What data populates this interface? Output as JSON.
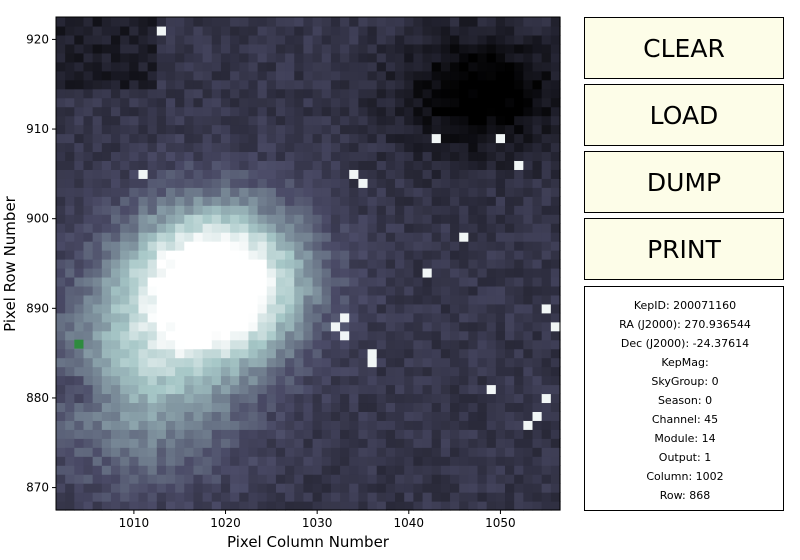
{
  "chart_data": {
    "type": "heatmap",
    "xlabel": "Pixel Column Number",
    "ylabel": "Pixel Row Number",
    "xlim": [
      1001.5,
      1056.5
    ],
    "ylim": [
      867.5,
      922.5
    ],
    "xticks": [
      "1010",
      "1020",
      "1030",
      "1040",
      "1050"
    ],
    "yticks": [
      "870",
      "880",
      "890",
      "900",
      "910",
      "920"
    ],
    "colormap": "bone",
    "selected_pixel": {
      "column": 1004,
      "row": 886,
      "color": "#2e8b3e"
    }
  },
  "buttons": {
    "clear": "CLEAR",
    "load": "LOAD",
    "dump": "DUMP",
    "print": "PRINT"
  },
  "info": {
    "kepid": "KepID: 200071160",
    "ra": "RA (J2000): 270.936544",
    "dec": "Dec (J2000): -24.37614",
    "kepmag": "KepMag:",
    "skygroup": "SkyGroup: 0",
    "season": "Season: 0",
    "channel": "Channel: 45",
    "module": "Module: 14",
    "output": "Output: 1",
    "column": "Column: 1002",
    "row": "Row: 868"
  }
}
